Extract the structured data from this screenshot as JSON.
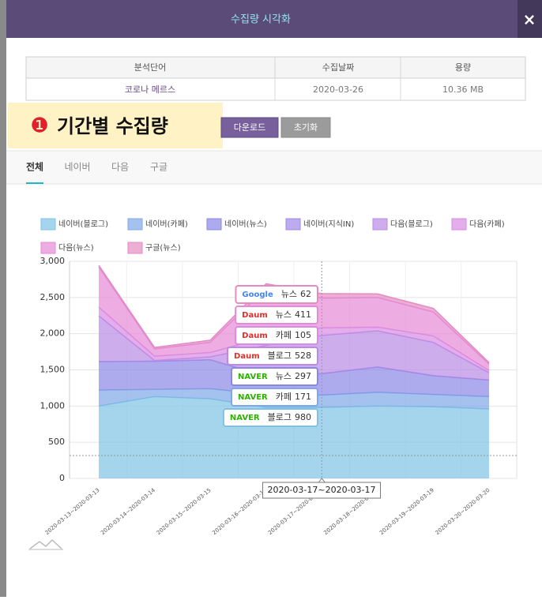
{
  "modal": {
    "title": "수집량 시각화",
    "close": "×"
  },
  "table": {
    "headers": [
      "분석단어",
      "수집날짜",
      "용량"
    ],
    "rows": [
      [
        "코로나 메르스",
        "2020-03-26",
        "10.36 MB"
      ]
    ]
  },
  "annotation": {
    "number": "❶",
    "text": "기간별 수집량"
  },
  "buttons": [
    "다운로드",
    "초기화"
  ],
  "tabs": [
    "전체",
    "네이버",
    "다음",
    "구글"
  ],
  "tooltip": {
    "items": [
      {
        "logo": "Google",
        "label": "뉴스"
      },
      {
        "logo": "Daum",
        "label": "뉴스"
      },
      {
        "logo": "Daum",
        "label": "카페"
      },
      {
        "logo": "Daum",
        "label": "블로그"
      },
      {
        "logo": "NAVER",
        "label": "뉴스"
      },
      {
        "logo": "NAVER",
        "label": "카페"
      },
      {
        "logo": "NAVER",
        "label": "블로그"
      }
    ]
  },
  "chart_data": {
    "type": "stacked_area",
    "categories": [
      "2020-03-13~2020-03-13",
      "2020-03-14~2020-03-14",
      "2020-03-15~2020-03-15",
      "2020-03-16~2020-03-16",
      "2020-03-17~2020-03-17",
      "2020-03-18~2020-03-18",
      "2020-03-19~2020-03-19",
      "2020-03-20~2020-03-20"
    ],
    "series": [
      {
        "name": "네이버(블로그)",
        "color": "#7ec3e6",
        "values": [
          1000,
          1130,
          1100,
          980,
          980,
          1000,
          990,
          960
        ]
      },
      {
        "name": "네이버(카페)",
        "color": "#7fa8e8",
        "values": [
          220,
          100,
          140,
          180,
          171,
          190,
          170,
          170
        ]
      },
      {
        "name": "네이버(뉴스)",
        "color": "#8a86e6",
        "values": [
          394,
          390,
          400,
          250,
          297,
          350,
          260,
          230
        ]
      },
      {
        "name": "네이버(지식IN)",
        "color": "#a089e6",
        "values": [
          0,
          0,
          0,
          0,
          0,
          0,
          0,
          0
        ]
      },
      {
        "name": "다음(블로그)",
        "color": "#b98ae6",
        "values": [
          633,
          10,
          40,
          430,
          528,
          500,
          460,
          100
        ]
      },
      {
        "name": "다음(카페)",
        "color": "#d98ae3",
        "values": [
          120,
          60,
          60,
          110,
          105,
          50,
          90,
          30
        ]
      },
      {
        "name": "다음(뉴스)",
        "color": "#e58ad6",
        "values": [
          556,
          100,
          140,
          680,
          411,
          410,
          330,
          90
        ]
      },
      {
        "name": "구글(뉴스)",
        "color": "#e48bc3",
        "values": [
          22,
          20,
          30,
          60,
          62,
          50,
          50,
          20
        ]
      }
    ],
    "ylim": [
      0,
      3000
    ],
    "yticks": [
      0,
      500,
      {
        "value": 1000,
        "label": "1,000"
      },
      {
        "value": 1500,
        "label": "1,500"
      },
      {
        "value": 2000,
        "label": "2,000"
      },
      {
        "value": 2500,
        "label": "2,500"
      },
      {
        "value": 3000,
        "label": "3,000"
      }
    ],
    "grid": true
  }
}
